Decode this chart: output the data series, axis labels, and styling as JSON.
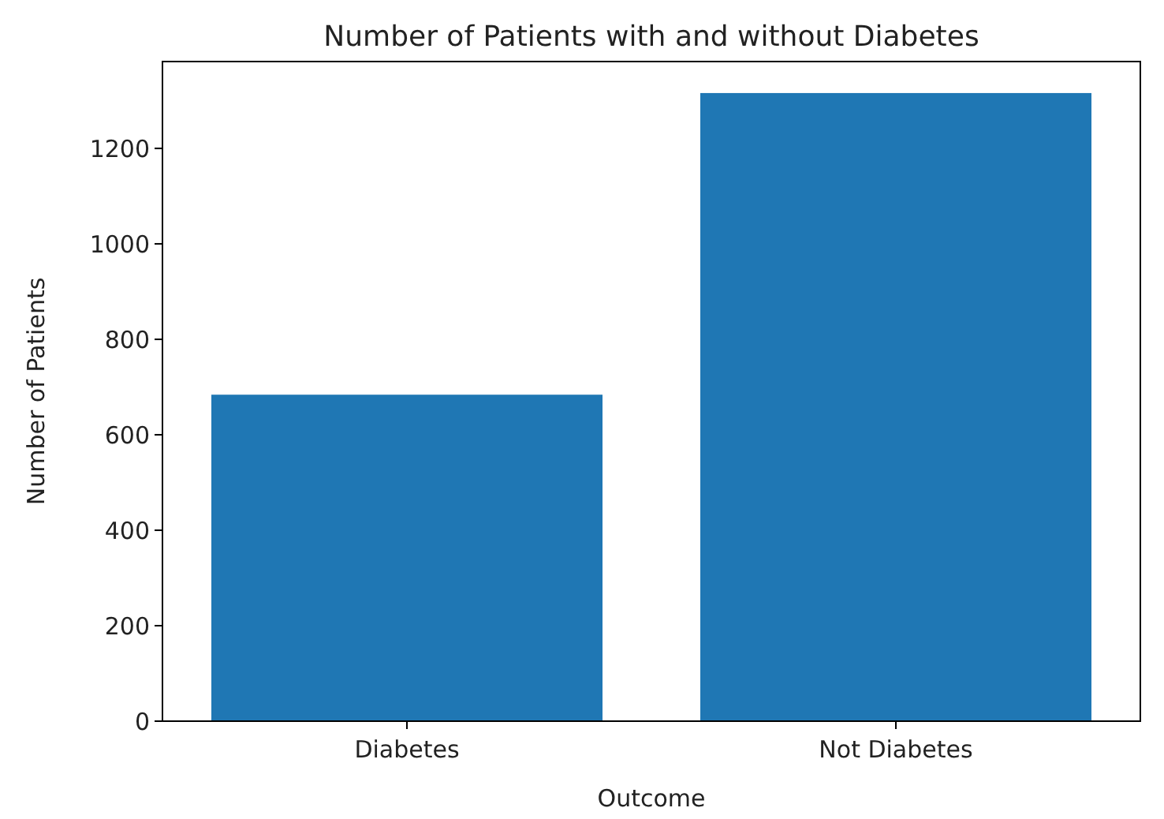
{
  "chart_data": {
    "type": "bar",
    "title": "Number of Patients with and without Diabetes",
    "xlabel": "Outcome",
    "ylabel": "Number of Patients",
    "categories": [
      "Diabetes",
      "Not Diabetes"
    ],
    "values": [
      684,
      1316
    ],
    "color": "#1f77b4",
    "ylim": [
      0,
      1382
    ],
    "yticks": [
      0,
      200,
      400,
      600,
      800,
      1000,
      1200
    ],
    "grid": false
  }
}
